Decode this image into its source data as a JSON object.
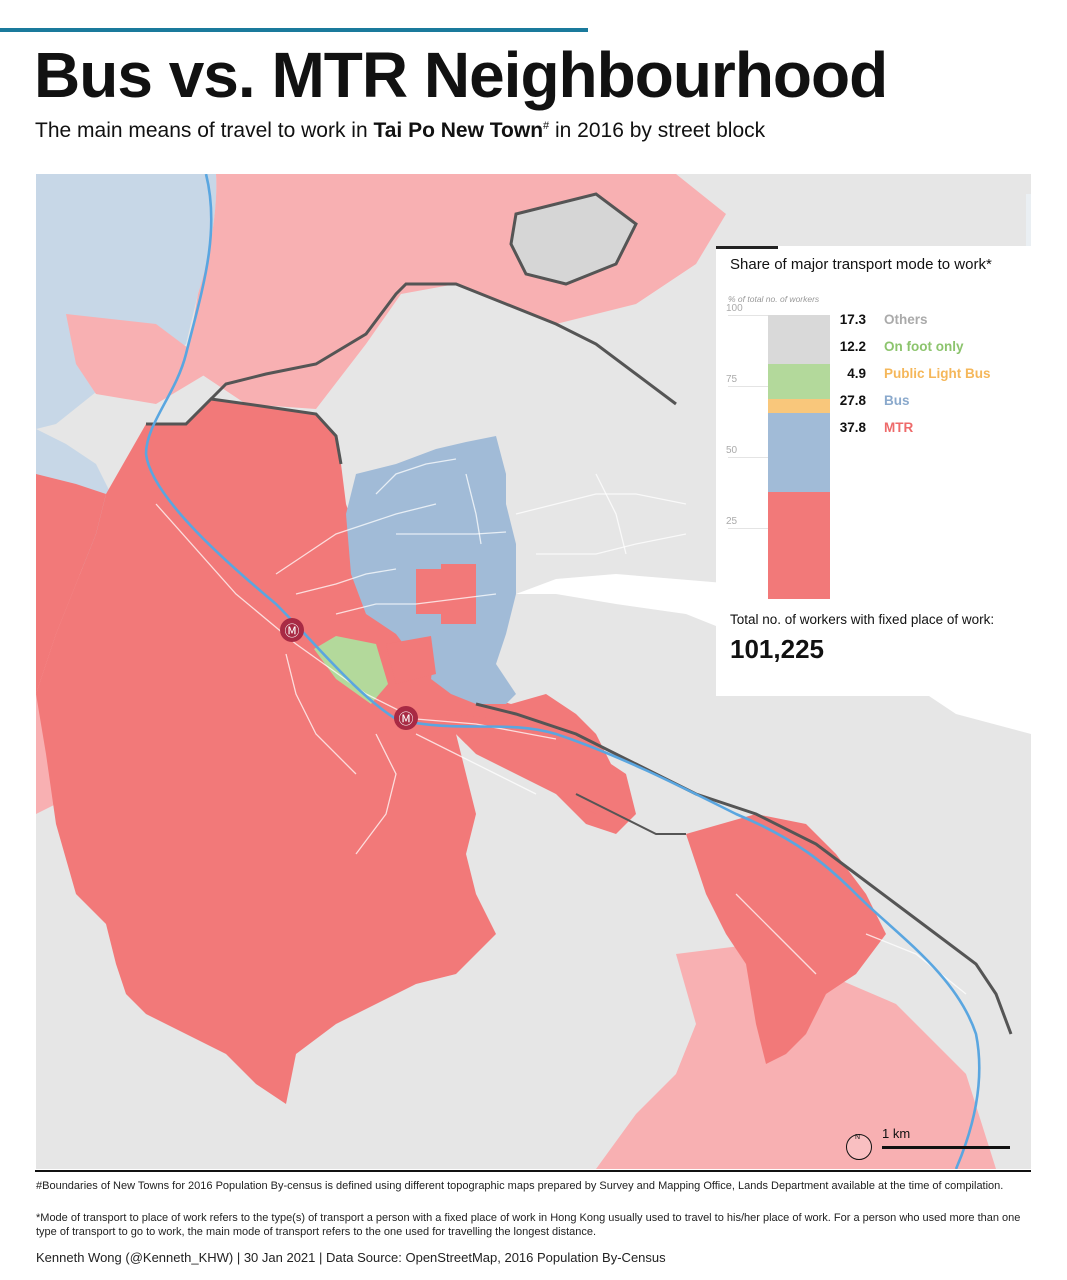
{
  "header": {
    "title": "Bus vs. MTR Neighbourhood",
    "subtitle_pre": "The main means of travel to work in ",
    "subtitle_bold": "Tai Po New Town",
    "subtitle_mark": "#",
    "subtitle_post": " in 2016 by street block"
  },
  "colors": {
    "mtr": "#f27979",
    "mtr_outside": "#f8b0b2",
    "bus": "#a1bbd7",
    "bus_outside": "#c7d7e7",
    "public_light_bus": "#f9c77b",
    "on_foot_only": "#b3d99b",
    "others": "#e0e0e0",
    "rail": "#5aa6e0",
    "station": "#a82a44",
    "accent_bar": "#1a7a9c"
  },
  "legend": {
    "title": "Share of major transport mode to work*",
    "axis_note": "% of total no. of workers",
    "ticks": [
      "100",
      "75",
      "50",
      "25"
    ],
    "categories": [
      {
        "name": "Others",
        "value": 17.3,
        "color": "#d9d9d9",
        "label_color": "#aaaaaa"
      },
      {
        "name": "On foot only",
        "value": 12.2,
        "color": "#b3d99b",
        "label_color": "#8cc46d"
      },
      {
        "name": "Public Light Bus",
        "value": 4.9,
        "color": "#f9c77b",
        "label_color": "#f5b75a"
      },
      {
        "name": "Bus",
        "value": 27.8,
        "color": "#a1bbd7",
        "label_color": "#8aa9cc"
      },
      {
        "name": "MTR",
        "value": 37.8,
        "color": "#f27979",
        "label_color": "#ee6a6a"
      }
    ],
    "total_label": "Total no. of workers with fixed place of work:",
    "total_value": "101,225"
  },
  "map": {
    "scale_label": "1 km",
    "north_label": "N",
    "station_icon": "mtr-station-icon"
  },
  "footnotes": {
    "boundary_note": "#Boundaries of New Towns for 2016 Population By-census is defined using different topographic maps prepared by Survey and Mapping Office, Lands Department available at the time of compilation.",
    "mode_note": "*Mode of transport to place of work refers to the type(s) of transport a person with a fixed place of work in Hong Kong usually used to travel to his/her place of work. For a person who used more than one type of transport to go to work, the main mode of transport refers to the one used for travelling the longest distance.",
    "credit": "Kenneth Wong (@Kenneth_KHW) | 30 Jan 2021 | Data Source: OpenStreetMap, 2016 Population By-Census"
  }
}
